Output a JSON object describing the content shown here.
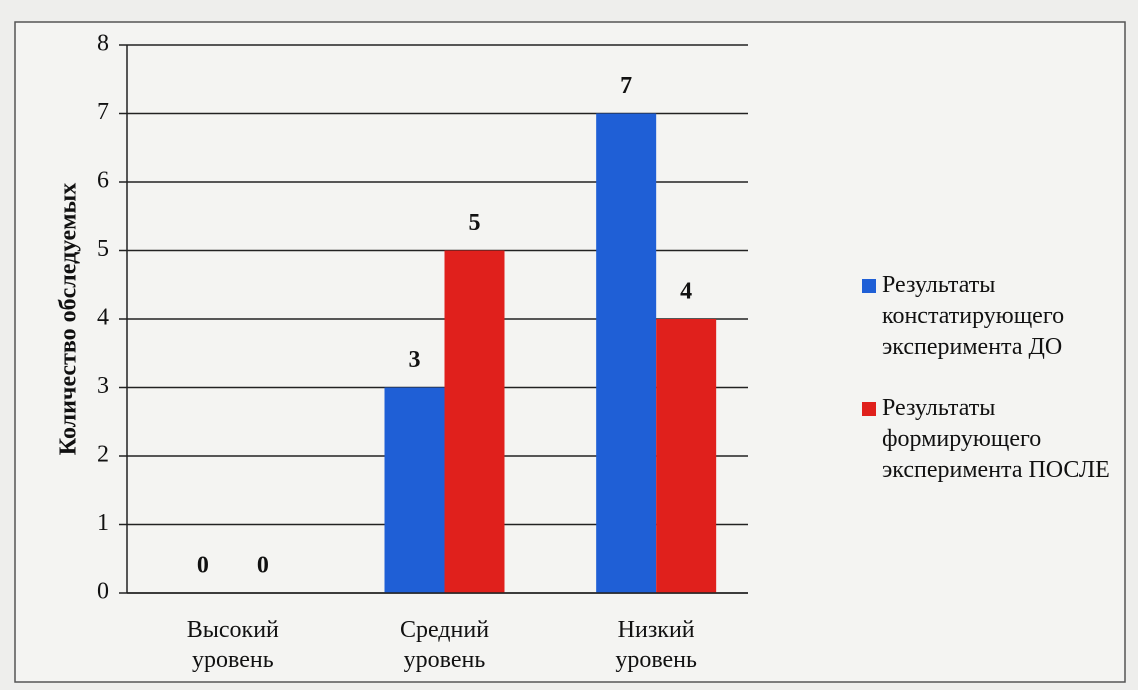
{
  "chart_data": {
    "type": "bar",
    "y_label": "Количество обследуемых",
    "categories": [
      "Высокий уровень",
      "Средний уровень",
      "Низкий уровень"
    ],
    "series": [
      {
        "name": "Результаты констатирующего эксперимента ДО",
        "color": "#1f5fd6",
        "values": [
          0,
          3,
          7
        ]
      },
      {
        "name": "Результаты формирующего эксперимента ПОСЛЕ",
        "color": "#e0201c",
        "values": [
          0,
          5,
          4
        ]
      }
    ],
    "ylim": [
      0,
      8
    ],
    "yticks": [
      0,
      1,
      2,
      3,
      4,
      5,
      6,
      7,
      8
    ],
    "grid": true,
    "legend": "right"
  }
}
